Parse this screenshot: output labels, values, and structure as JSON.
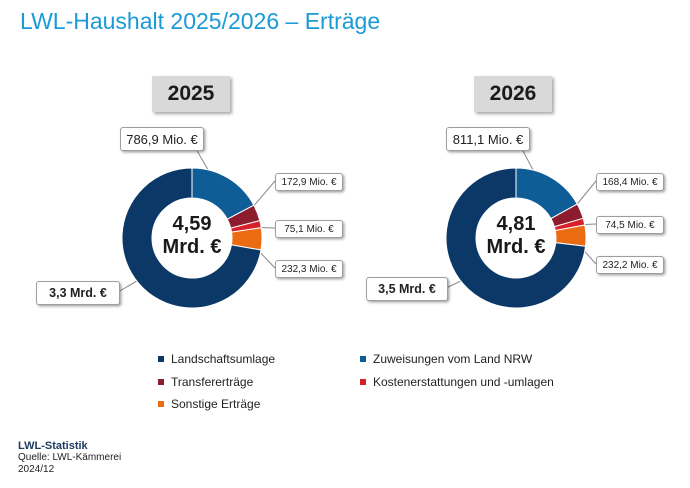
{
  "title": "LWL-Haushalt 2025/2026 – Erträge",
  "colors": {
    "landschaftsumlage": "#0b3866",
    "zuweisungen": "#0e5d96",
    "transferertraege": "#8c1c2e",
    "kostenerstattungen": "#d8202c",
    "sonstige": "#ea6b12",
    "title": "#1a9ad6"
  },
  "chart_data": [
    {
      "type": "pie",
      "year": "2025",
      "total_label": "4,59",
      "total_unit": "Mrd. €",
      "slices": [
        {
          "key": "zuweisungen",
          "name": "Zuweisungen vom Land NRW",
          "value": 786.9,
          "label": "786,9 Mio. €"
        },
        {
          "key": "transferertraege",
          "name": "Transfererträge",
          "value": 172.9,
          "label": "172,9 Mio. €"
        },
        {
          "key": "kostenerstattungen",
          "name": "Kostenerstattungen und -umlagen",
          "value": 75.1,
          "label": "75,1 Mio. €"
        },
        {
          "key": "sonstige",
          "name": "Sonstige Erträge",
          "value": 232.3,
          "label": "232,3 Mio. €"
        },
        {
          "key": "landschaftsumlage",
          "name": "Landschaftsumlage",
          "value": 3300,
          "label": "3,3 Mrd. €"
        }
      ]
    },
    {
      "type": "pie",
      "year": "2026",
      "total_label": "4,81",
      "total_unit": "Mrd. €",
      "slices": [
        {
          "key": "zuweisungen",
          "name": "Zuweisungen vom Land NRW",
          "value": 811.1,
          "label": "811,1 Mio. €"
        },
        {
          "key": "transferertraege",
          "name": "Transfererträge",
          "value": 168.4,
          "label": "168,4 Mio. €"
        },
        {
          "key": "kostenerstattungen",
          "name": "Kostenerstattungen und -umlagen",
          "value": 74.5,
          "label": "74,5 Mio. €"
        },
        {
          "key": "sonstige",
          "name": "Sonstige Erträge",
          "value": 232.2,
          "label": "232,2 Mio. €"
        },
        {
          "key": "landschaftsumlage",
          "name": "Landschaftsumlage",
          "value": 3500,
          "label": "3,5 Mrd. €"
        }
      ]
    }
  ],
  "legend": [
    {
      "key": "landschaftsumlage",
      "label": "Landschaftsumlage"
    },
    {
      "key": "zuweisungen",
      "label": "Zuweisungen vom Land NRW"
    },
    {
      "key": "transferertraege",
      "label": "Transfererträge"
    },
    {
      "key": "kostenerstattungen",
      "label": "Kostenerstattungen und -umlagen"
    },
    {
      "key": "sonstige",
      "label": "Sonstige Erträge"
    }
  ],
  "footer": {
    "brand": "LWL-Statistik",
    "source": "Quelle: LWL-Kämmerei",
    "date": "2024/12"
  }
}
